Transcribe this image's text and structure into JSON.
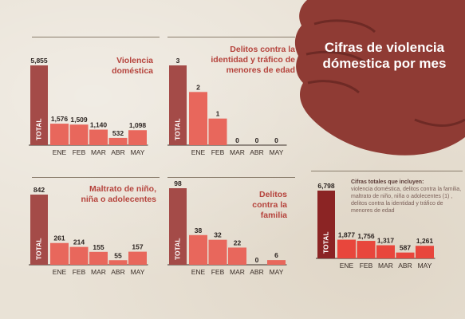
{
  "title": "Cifras de violencia dómestica por mes",
  "note": {
    "heading": "Cifras totales que incluyen:",
    "text": "violencia doméstica, delitos contra la familia, maltrato de niño, niña o adolecentes (1) , delitos contra la identidad y tráfico de menores de edad"
  },
  "colors": {
    "total": "#a44b48",
    "month": "#e8675c",
    "total_dark": "#8b2424",
    "month_bright": "#e8463c",
    "fist": "#8f3b34"
  },
  "chart_data": [
    {
      "type": "bar",
      "title": "Violencia doméstica",
      "categories": [
        "TOTAL",
        "ENE",
        "FEB",
        "MAR",
        "ABR",
        "MAY"
      ],
      "values": [
        5855,
        1576,
        1509,
        1140,
        532,
        1098
      ],
      "value_labels": [
        "5,855",
        "1,576",
        "1,509",
        "1,140",
        "532",
        "1,098"
      ]
    },
    {
      "type": "bar",
      "title": "Delitos contra la identidad y tráfico de menores de edad",
      "categories": [
        "TOTAL",
        "ENE",
        "FEB",
        "MAR",
        "ABR",
        "MAY"
      ],
      "values": [
        3,
        2,
        1,
        0,
        0,
        0
      ],
      "value_labels": [
        "3",
        "2",
        "1",
        "0",
        "0",
        "0"
      ]
    },
    {
      "type": "bar",
      "title": "Maltrato de niño, niña o adolecentes",
      "categories": [
        "TOTAL",
        "ENE",
        "FEB",
        "MAR",
        "ABR",
        "MAY"
      ],
      "values": [
        842,
        261,
        214,
        155,
        55,
        157
      ],
      "value_labels": [
        "842",
        "261",
        "214",
        "155",
        "55",
        "157"
      ]
    },
    {
      "type": "bar",
      "title": "Delitos contra la familia",
      "categories": [
        "TOTAL",
        "ENE",
        "FEB",
        "MAR",
        "ABR",
        "MAY"
      ],
      "values": [
        98,
        38,
        32,
        22,
        0,
        6
      ],
      "value_labels": [
        "98",
        "38",
        "32",
        "22",
        "0",
        "6"
      ]
    },
    {
      "type": "bar",
      "title": "",
      "categories": [
        "TOTAL",
        "ENE",
        "FEB",
        "MAR",
        "ABR",
        "MAY"
      ],
      "values": [
        6798,
        1877,
        1756,
        1317,
        587,
        1261
      ],
      "value_labels": [
        "6,798",
        "1,877",
        "1,756",
        "1,317",
        "587",
        "1,261"
      ]
    }
  ]
}
